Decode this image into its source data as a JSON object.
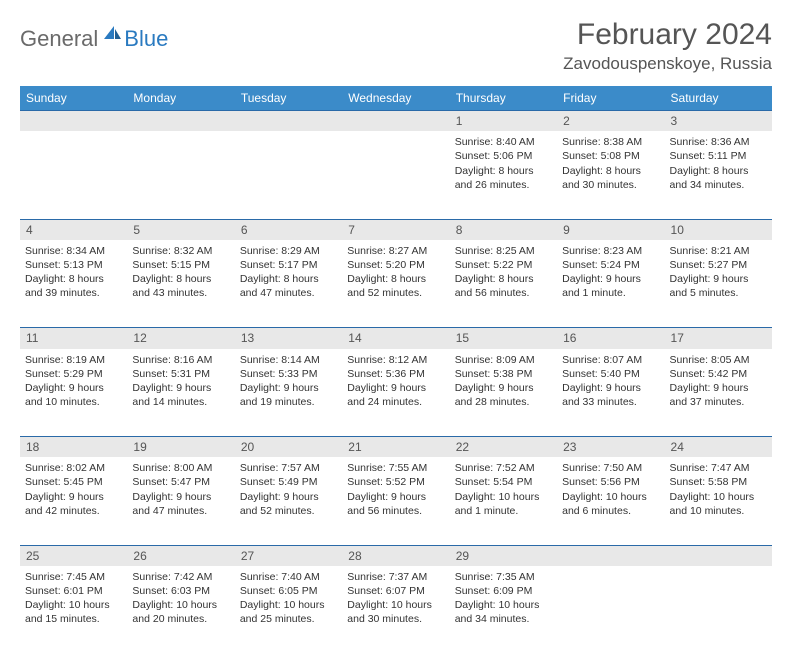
{
  "logo": {
    "text1": "General",
    "text2": "Blue"
  },
  "title": "February 2024",
  "location": "Zavodouspenskoye, Russia",
  "colors": {
    "header_bg": "#3b8bc9",
    "header_text": "#ffffff",
    "daynum_bg": "#e8e8e8",
    "border": "#2a6aa8",
    "logo_gray": "#6a6a6a",
    "logo_blue": "#2a7ac0",
    "text": "#333333"
  },
  "day_headers": [
    "Sunday",
    "Monday",
    "Tuesday",
    "Wednesday",
    "Thursday",
    "Friday",
    "Saturday"
  ],
  "weeks": [
    {
      "nums": [
        "",
        "",
        "",
        "",
        "1",
        "2",
        "3"
      ],
      "cells": [
        null,
        null,
        null,
        null,
        {
          "sunrise": "Sunrise: 8:40 AM",
          "sunset": "Sunset: 5:06 PM",
          "day1": "Daylight: 8 hours",
          "day2": "and 26 minutes."
        },
        {
          "sunrise": "Sunrise: 8:38 AM",
          "sunset": "Sunset: 5:08 PM",
          "day1": "Daylight: 8 hours",
          "day2": "and 30 minutes."
        },
        {
          "sunrise": "Sunrise: 8:36 AM",
          "sunset": "Sunset: 5:11 PM",
          "day1": "Daylight: 8 hours",
          "day2": "and 34 minutes."
        }
      ]
    },
    {
      "nums": [
        "4",
        "5",
        "6",
        "7",
        "8",
        "9",
        "10"
      ],
      "cells": [
        {
          "sunrise": "Sunrise: 8:34 AM",
          "sunset": "Sunset: 5:13 PM",
          "day1": "Daylight: 8 hours",
          "day2": "and 39 minutes."
        },
        {
          "sunrise": "Sunrise: 8:32 AM",
          "sunset": "Sunset: 5:15 PM",
          "day1": "Daylight: 8 hours",
          "day2": "and 43 minutes."
        },
        {
          "sunrise": "Sunrise: 8:29 AM",
          "sunset": "Sunset: 5:17 PM",
          "day1": "Daylight: 8 hours",
          "day2": "and 47 minutes."
        },
        {
          "sunrise": "Sunrise: 8:27 AM",
          "sunset": "Sunset: 5:20 PM",
          "day1": "Daylight: 8 hours",
          "day2": "and 52 minutes."
        },
        {
          "sunrise": "Sunrise: 8:25 AM",
          "sunset": "Sunset: 5:22 PM",
          "day1": "Daylight: 8 hours",
          "day2": "and 56 minutes."
        },
        {
          "sunrise": "Sunrise: 8:23 AM",
          "sunset": "Sunset: 5:24 PM",
          "day1": "Daylight: 9 hours",
          "day2": "and 1 minute."
        },
        {
          "sunrise": "Sunrise: 8:21 AM",
          "sunset": "Sunset: 5:27 PM",
          "day1": "Daylight: 9 hours",
          "day2": "and 5 minutes."
        }
      ]
    },
    {
      "nums": [
        "11",
        "12",
        "13",
        "14",
        "15",
        "16",
        "17"
      ],
      "cells": [
        {
          "sunrise": "Sunrise: 8:19 AM",
          "sunset": "Sunset: 5:29 PM",
          "day1": "Daylight: 9 hours",
          "day2": "and 10 minutes."
        },
        {
          "sunrise": "Sunrise: 8:16 AM",
          "sunset": "Sunset: 5:31 PM",
          "day1": "Daylight: 9 hours",
          "day2": "and 14 minutes."
        },
        {
          "sunrise": "Sunrise: 8:14 AM",
          "sunset": "Sunset: 5:33 PM",
          "day1": "Daylight: 9 hours",
          "day2": "and 19 minutes."
        },
        {
          "sunrise": "Sunrise: 8:12 AM",
          "sunset": "Sunset: 5:36 PM",
          "day1": "Daylight: 9 hours",
          "day2": "and 24 minutes."
        },
        {
          "sunrise": "Sunrise: 8:09 AM",
          "sunset": "Sunset: 5:38 PM",
          "day1": "Daylight: 9 hours",
          "day2": "and 28 minutes."
        },
        {
          "sunrise": "Sunrise: 8:07 AM",
          "sunset": "Sunset: 5:40 PM",
          "day1": "Daylight: 9 hours",
          "day2": "and 33 minutes."
        },
        {
          "sunrise": "Sunrise: 8:05 AM",
          "sunset": "Sunset: 5:42 PM",
          "day1": "Daylight: 9 hours",
          "day2": "and 37 minutes."
        }
      ]
    },
    {
      "nums": [
        "18",
        "19",
        "20",
        "21",
        "22",
        "23",
        "24"
      ],
      "cells": [
        {
          "sunrise": "Sunrise: 8:02 AM",
          "sunset": "Sunset: 5:45 PM",
          "day1": "Daylight: 9 hours",
          "day2": "and 42 minutes."
        },
        {
          "sunrise": "Sunrise: 8:00 AM",
          "sunset": "Sunset: 5:47 PM",
          "day1": "Daylight: 9 hours",
          "day2": "and 47 minutes."
        },
        {
          "sunrise": "Sunrise: 7:57 AM",
          "sunset": "Sunset: 5:49 PM",
          "day1": "Daylight: 9 hours",
          "day2": "and 52 minutes."
        },
        {
          "sunrise": "Sunrise: 7:55 AM",
          "sunset": "Sunset: 5:52 PM",
          "day1": "Daylight: 9 hours",
          "day2": "and 56 minutes."
        },
        {
          "sunrise": "Sunrise: 7:52 AM",
          "sunset": "Sunset: 5:54 PM",
          "day1": "Daylight: 10 hours",
          "day2": "and 1 minute."
        },
        {
          "sunrise": "Sunrise: 7:50 AM",
          "sunset": "Sunset: 5:56 PM",
          "day1": "Daylight: 10 hours",
          "day2": "and 6 minutes."
        },
        {
          "sunrise": "Sunrise: 7:47 AM",
          "sunset": "Sunset: 5:58 PM",
          "day1": "Daylight: 10 hours",
          "day2": "and 10 minutes."
        }
      ]
    },
    {
      "nums": [
        "25",
        "26",
        "27",
        "28",
        "29",
        "",
        ""
      ],
      "cells": [
        {
          "sunrise": "Sunrise: 7:45 AM",
          "sunset": "Sunset: 6:01 PM",
          "day1": "Daylight: 10 hours",
          "day2": "and 15 minutes."
        },
        {
          "sunrise": "Sunrise: 7:42 AM",
          "sunset": "Sunset: 6:03 PM",
          "day1": "Daylight: 10 hours",
          "day2": "and 20 minutes."
        },
        {
          "sunrise": "Sunrise: 7:40 AM",
          "sunset": "Sunset: 6:05 PM",
          "day1": "Daylight: 10 hours",
          "day2": "and 25 minutes."
        },
        {
          "sunrise": "Sunrise: 7:37 AM",
          "sunset": "Sunset: 6:07 PM",
          "day1": "Daylight: 10 hours",
          "day2": "and 30 minutes."
        },
        {
          "sunrise": "Sunrise: 7:35 AM",
          "sunset": "Sunset: 6:09 PM",
          "day1": "Daylight: 10 hours",
          "day2": "and 34 minutes."
        },
        null,
        null
      ]
    }
  ]
}
